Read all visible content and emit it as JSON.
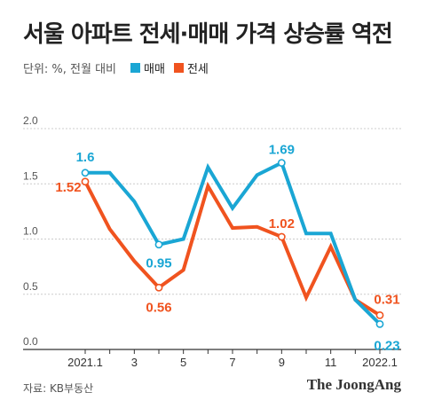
{
  "title": "서울 아파트 전세·매매 가격 상승률 역전",
  "unit_note": "단위: %, 전월 대비",
  "source": "자료: KB부동산",
  "brand": "The JoongAng",
  "colors": {
    "sale": "#1aa6d4",
    "jeonse": "#f0531f",
    "axis": "#333333",
    "grid": "#cccccc",
    "tick_text": "#555555"
  },
  "chart_data": {
    "type": "line",
    "x": [
      "2021.1",
      "2",
      "3",
      "4",
      "5",
      "6",
      "7",
      "8",
      "9",
      "10",
      "11",
      "12",
      "2022.1"
    ],
    "xtick_labels": [
      "2021.1",
      "",
      "3",
      "",
      "5",
      "",
      "7",
      "",
      "9",
      "",
      "11",
      "",
      "2022.1"
    ],
    "ylim": [
      0.0,
      2.0
    ],
    "yticks": [
      "0.0",
      "0.5",
      "1.0",
      "1.5",
      "2.0"
    ],
    "grid": true,
    "legend_placement": "top-left",
    "series": [
      {
        "name": "매매",
        "color": "#1aa6d4",
        "values": [
          1.6,
          1.6,
          1.34,
          0.95,
          1.0,
          1.65,
          1.28,
          1.58,
          1.69,
          1.05,
          1.05,
          0.45,
          0.23
        ],
        "labels": [
          {
            "index": 0,
            "text": "1.6"
          },
          {
            "index": 3,
            "text": "0.95"
          },
          {
            "index": 8,
            "text": "1.69"
          },
          {
            "index": 12,
            "text": "0.23"
          }
        ]
      },
      {
        "name": "전세",
        "color": "#f0531f",
        "values": [
          1.52,
          1.09,
          0.8,
          0.56,
          0.72,
          1.48,
          1.1,
          1.11,
          1.02,
          0.47,
          0.93,
          0.45,
          0.31
        ],
        "labels": [
          {
            "index": 0,
            "text": "1.52"
          },
          {
            "index": 3,
            "text": "0.56"
          },
          {
            "index": 8,
            "text": "1.02"
          },
          {
            "index": 12,
            "text": "0.31"
          }
        ]
      }
    ]
  }
}
